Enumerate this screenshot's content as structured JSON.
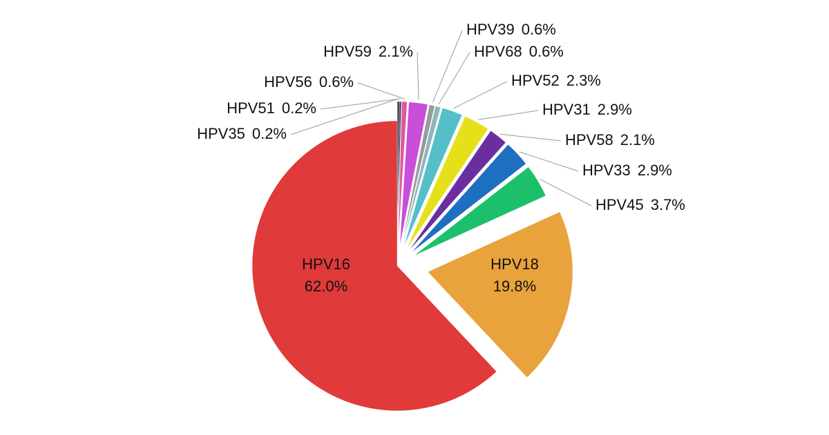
{
  "chart_data": {
    "type": "pie",
    "categories": [
      "HPV35",
      "HPV51",
      "HPV56",
      "HPV59",
      "HPV39",
      "HPV68",
      "HPV52",
      "HPV31",
      "HPV58",
      "HPV33",
      "HPV45",
      "HPV18",
      "HPV16"
    ],
    "values": [
      0.2,
      0.2,
      0.6,
      2.1,
      0.6,
      0.6,
      2.3,
      2.9,
      2.1,
      2.9,
      3.7,
      19.8,
      62.0
    ],
    "value_labels": [
      "0.2%",
      "0.2%",
      "0.6%",
      "2.1%",
      "0.6%",
      "0.6%",
      "2.3%",
      "2.9%",
      "2.1%",
      "2.9%",
      "3.7%",
      "19.8%",
      "62.0%"
    ],
    "colors": [
      "#111111",
      "#1f2d6b",
      "#e0579a",
      "#c84fd8",
      "#9a9a9a",
      "#8fb6bc",
      "#55bfc9",
      "#e6e01a",
      "#6a2ea0",
      "#1f6fc0",
      "#1cc06a",
      "#e8a33c",
      "#e03a3a"
    ]
  }
}
